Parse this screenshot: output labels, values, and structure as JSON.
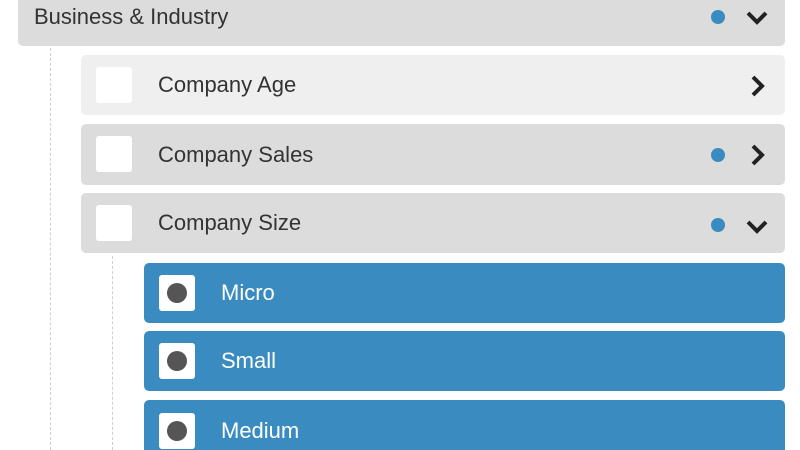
{
  "category": {
    "label": "Business & Industry"
  },
  "subcategories": [
    {
      "label": "Company Age"
    },
    {
      "label": "Company Sales"
    },
    {
      "label": "Company Size"
    }
  ],
  "options": [
    {
      "label": "Micro"
    },
    {
      "label": "Small"
    },
    {
      "label": "Medium"
    }
  ]
}
